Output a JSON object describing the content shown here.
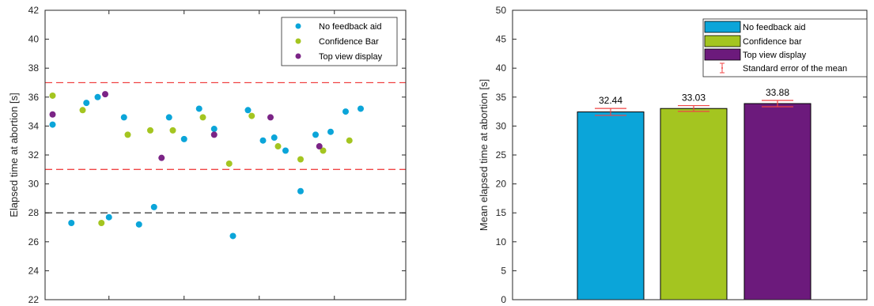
{
  "chart_data": [
    {
      "type": "scatter",
      "ylabel": "Elapsed time at abortion [s]",
      "ylim": [
        22,
        42
      ],
      "yticks": [
        "22",
        "24",
        "26",
        "28",
        "30",
        "32",
        "34",
        "36",
        "38",
        "40",
        "42"
      ],
      "xlim": [
        0,
        48
      ],
      "reference_lines": [
        {
          "y": 37,
          "color": "#f04545",
          "style": "dashed"
        },
        {
          "y": 31,
          "color": "#f04545",
          "style": "dashed"
        },
        {
          "y": 28,
          "color": "#404040",
          "style": "dashed"
        }
      ],
      "legend_position": "top-right",
      "series": [
        {
          "name": "No feedback aid",
          "color": "#0ba5d9",
          "points": [
            {
              "x": 1.0,
              "y": 34.1
            },
            {
              "x": 3.5,
              "y": 27.3
            },
            {
              "x": 5.5,
              "y": 35.6
            },
            {
              "x": 7.0,
              "y": 36.0
            },
            {
              "x": 8.5,
              "y": 27.7
            },
            {
              "x": 10.5,
              "y": 34.6
            },
            {
              "x": 12.5,
              "y": 27.2
            },
            {
              "x": 14.5,
              "y": 28.4
            },
            {
              "x": 16.5,
              "y": 34.6
            },
            {
              "x": 18.5,
              "y": 33.1
            },
            {
              "x": 20.5,
              "y": 35.2
            },
            {
              "x": 22.5,
              "y": 33.8
            },
            {
              "x": 25.0,
              "y": 26.4
            },
            {
              "x": 27.0,
              "y": 35.1
            },
            {
              "x": 29.0,
              "y": 33.0
            },
            {
              "x": 30.5,
              "y": 33.2
            },
            {
              "x": 32.0,
              "y": 32.3
            },
            {
              "x": 34.0,
              "y": 29.5
            },
            {
              "x": 36.0,
              "y": 33.4
            },
            {
              "x": 38.0,
              "y": 33.6
            },
            {
              "x": 40.0,
              "y": 35.0
            },
            {
              "x": 42.0,
              "y": 35.2
            }
          ]
        },
        {
          "name": "Confidence Bar",
          "color": "#a4c520",
          "points": [
            {
              "x": 1.0,
              "y": 36.1
            },
            {
              "x": 5.0,
              "y": 35.1
            },
            {
              "x": 7.5,
              "y": 27.3
            },
            {
              "x": 11.0,
              "y": 33.4
            },
            {
              "x": 14.0,
              "y": 33.7
            },
            {
              "x": 17.0,
              "y": 33.7
            },
            {
              "x": 21.0,
              "y": 34.6
            },
            {
              "x": 24.5,
              "y": 31.4
            },
            {
              "x": 27.5,
              "y": 34.7
            },
            {
              "x": 31.0,
              "y": 32.6
            },
            {
              "x": 34.0,
              "y": 31.7
            },
            {
              "x": 37.0,
              "y": 32.3
            },
            {
              "x": 40.5,
              "y": 33.0
            }
          ]
        },
        {
          "name": "Top view display",
          "color": "#7b2486",
          "points": [
            {
              "x": 1.0,
              "y": 34.8
            },
            {
              "x": 8.0,
              "y": 36.2
            },
            {
              "x": 15.5,
              "y": 31.8
            },
            {
              "x": 22.5,
              "y": 33.4
            },
            {
              "x": 30.0,
              "y": 34.6
            },
            {
              "x": 36.5,
              "y": 32.6
            }
          ]
        }
      ]
    },
    {
      "type": "bar",
      "ylabel": "Mean elapsed time at abortion [s]",
      "ylim": [
        0,
        50
      ],
      "yticks": [
        "0",
        "5",
        "10",
        "15",
        "20",
        "25",
        "30",
        "35",
        "40",
        "45",
        "50"
      ],
      "legend_position": "top-right",
      "bars": [
        {
          "name": "No feedback aid",
          "value": 32.44,
          "value_label": "32.44",
          "sem": 0.6,
          "color": "#0ba5d9"
        },
        {
          "name": "Confidence bar",
          "value": 33.03,
          "value_label": "33.03",
          "sem": 0.5,
          "color": "#a4c520"
        },
        {
          "name": "Top view display",
          "value": 33.88,
          "value_label": "33.88",
          "sem": 0.55,
          "color": "#6c1a7c"
        }
      ],
      "errorbar_legend": "Standard error of the mean",
      "errorbar_color": "#f04545"
    }
  ]
}
